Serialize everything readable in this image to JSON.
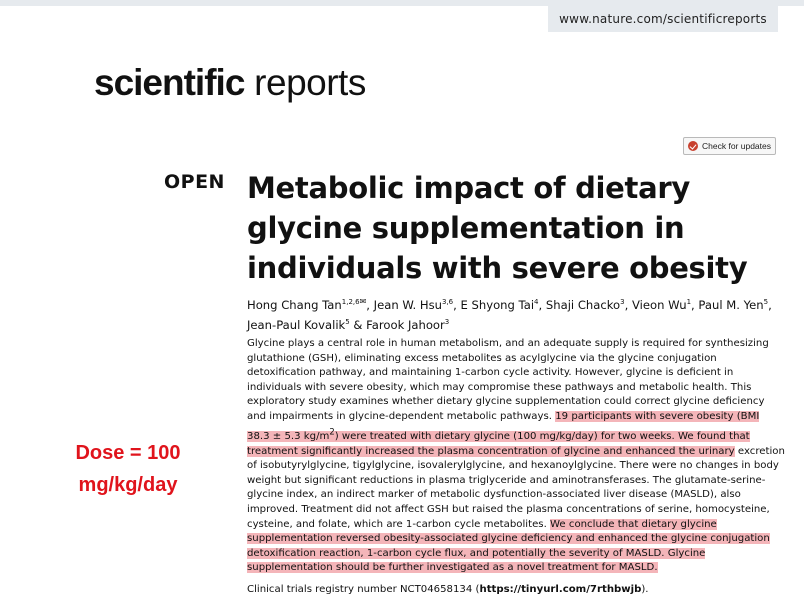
{
  "header": {
    "url": "www.nature.com/scientificreports",
    "logo_bold": "scientific",
    "logo_regular": " reports",
    "updates_button": "Check for updates"
  },
  "article": {
    "access": "OPEN",
    "title": "Metabolic impact of dietary glycine supplementation in individuals with severe obesity",
    "authors": [
      {
        "name": "Hong Chang Tan",
        "aff": "1,2,6",
        "sep": ", "
      },
      {
        "name": "Jean W. Hsu",
        "aff": "3,6",
        "sep": ", "
      },
      {
        "name": "E Shyong Tai",
        "aff": "4",
        "sep": ", "
      },
      {
        "name": "Shaji Chacko",
        "aff": "3",
        "sep": ", "
      },
      {
        "name": "Vieon Wu",
        "aff": "1",
        "sep": ", "
      },
      {
        "name": "Paul M. Yen",
        "aff": "5",
        "sep": ", "
      },
      {
        "name": "Jean-Paul Kovalik",
        "aff": "5",
        "sep": " & "
      },
      {
        "name": "Farook Jahoor",
        "aff": "3",
        "sep": ""
      }
    ],
    "abstract": {
      "p1": "Glycine plays a central role in human metabolism, and an adequate supply is required for synthesizing glutathione (GSH), eliminating excess metabolites as acylglycine via the glycine conjugation detoxification pathway, and maintaining 1-carbon cycle activity. However, glycine is deficient in individuals with severe obesity, which may compromise these pathways and metabolic health. This exploratory study examines whether dietary glycine supplementation could correct glycine deficiency and impairments in glycine-dependent metabolic pathways. ",
      "h1a": "19 participants with severe obesity (BMI 38.3 ± 5.3 kg/m",
      "h1sup": "2",
      "h1b": ") were treated with dietary glycine (100 mg/kg/day) for two weeks. We found that treatment significantly increased the plasma concentration of glycine and enhanced the urinary",
      "p2": " excretion of isobutyrylglycine, tigylglycine, isovalerylglycine, and hexanoylglycine. There were no changes in body weight but significant reductions in plasma triglyceride and aminotransferases. The glutamate-serine-glycine index, an indirect marker of metabolic dysfunction-associated liver disease (MASLD), also improved. Treatment did not affect GSH but raised the plasma concentrations of serine, homocysteine, cysteine, and folate, which are 1-carbon cycle metabolites. ",
      "h2": "We conclude that dietary glycine supplementation reversed obesity-associated glycine deficiency and enhanced the glycine conjugation detoxification reaction, 1-carbon cycle flux, and potentially the severity of MASLD. Glycine supplementation should be further investigated as a novel treatment for MASLD."
    },
    "registry_text": "Clinical trials registry number NCT04658134 (",
    "registry_link": "https://tinyurl.com/7rthbwjb",
    "registry_end": ")."
  },
  "annotation": {
    "line1": "Dose = 100",
    "line2": "mg/kg/day",
    "color": "#e0141c",
    "highlight_color": "#f4b5b9"
  }
}
